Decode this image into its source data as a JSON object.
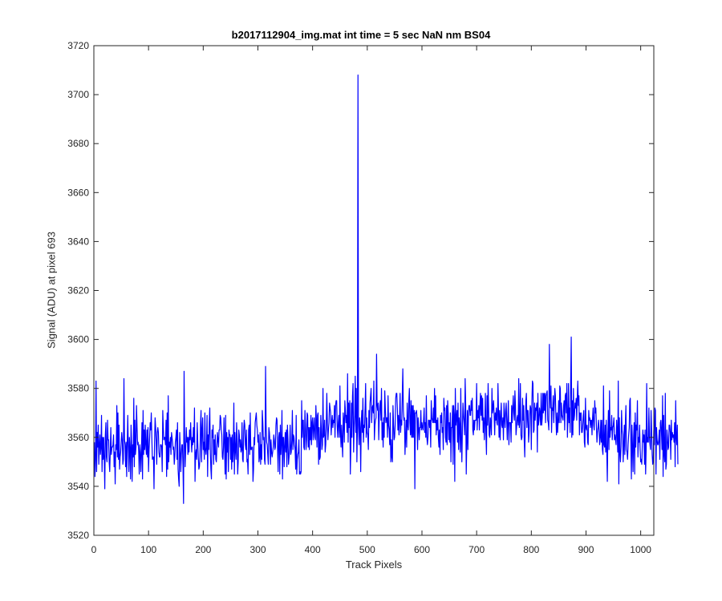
{
  "chart_data": {
    "type": "line",
    "title": "b2017112904_img.mat int time = 5 sec  NaN nm BS04",
    "xlabel": "Track Pixels",
    "ylabel": "Signal (ADU) at pixel 693",
    "xlim": [
      0,
      1024
    ],
    "ylim": [
      3520,
      3720
    ],
    "xticks": [
      0,
      100,
      200,
      300,
      400,
      500,
      600,
      700,
      800,
      900,
      1000
    ],
    "yticks": [
      3520,
      3540,
      3560,
      3580,
      3600,
      3620,
      3640,
      3660,
      3680,
      3700,
      3720
    ],
    "grid": false,
    "legend": "none",
    "line_color": "#0000ff",
    "series": [
      {
        "x_start": 1,
        "x_step": 1,
        "y": [
          3558,
          3544,
          3551,
          3583,
          3546,
          3562,
          3556,
          3565,
          3549,
          3557,
          3561,
          3553,
          3556,
          3569,
          3546,
          3560,
          3551,
          3560,
          3551,
          3539,
          3561,
          3566,
          3552,
          3550,
          3567,
          3559,
          3559,
          3550,
          3546,
          3554,
          3564,
          3553,
          3556,
          3556,
          3557,
          3561,
          3548,
          3554,
          3541,
          3557,
          3555,
          3573,
          3552,
          3570,
          3551,
          3565,
          3547,
          3552,
          3554,
          3558,
          3562,
          3559,
          3549,
          3551,
          3584,
          3559,
          3557,
          3548,
          3558,
          3544,
          3557,
          3569,
          3556,
          3546,
          3560,
          3555,
          3543,
          3565,
          3558,
          3542,
          3557,
          3552,
          3576,
          3548,
          3567,
          3553,
          3556,
          3573,
          3564,
          3557,
          3558,
          3554,
          3545,
          3557,
          3554,
          3546,
          3554,
          3566,
          3543,
          3571,
          3553,
          3563,
          3555,
          3565,
          3557,
          3553,
          3563,
          3552,
          3564,
          3546,
          3555,
          3560,
          3566,
          3563,
          3570,
          3560,
          3551,
          3552,
          3552,
          3539,
          3558,
          3568,
          3564,
          3558,
          3549,
          3562,
          3564,
          3562,
          3554,
          3552,
          3552,
          3557,
          3557,
          3556,
          3546,
          3571,
          3564,
          3559,
          3560,
          3560,
          3557,
          3567,
          3544,
          3570,
          3547,
          3577,
          3550,
          3558,
          3556,
          3560,
          3553,
          3562,
          3560,
          3558,
          3555,
          3556,
          3549,
          3552,
          3558,
          3560,
          3563,
          3551,
          3566,
          3547,
          3543,
          3540,
          3562,
          3556,
          3546,
          3553,
          3557,
          3557,
          3548,
          3533,
          3587,
          3560,
          3548,
          3556,
          3564,
          3558,
          3560,
          3553,
          3560,
          3554,
          3563,
          3559,
          3566,
          3559,
          3554,
          3560,
          3557,
          3564,
          3558,
          3572,
          3542,
          3553,
          3555,
          3551,
          3566,
          3558,
          3552,
          3547,
          3548,
          3552,
          3565,
          3571,
          3550,
          3563,
          3568,
          3555,
          3558,
          3551,
          3570,
          3555,
          3553,
          3556,
          3569,
          3544,
          3561,
          3555,
          3566,
          3572,
          3554,
          3547,
          3543,
          3563,
          3560,
          3565,
          3549,
          3559,
          3553,
          3561,
          3551,
          3550,
          3556,
          3562,
          3559,
          3556,
          3563,
          3563,
          3569,
          3568,
          3563,
          3561,
          3552,
          3551,
          3556,
          3568,
          3557,
          3545,
          3569,
          3543,
          3562,
          3554,
          3560,
          3546,
          3563,
          3561,
          3561,
          3551,
          3560,
          3547,
          3561,
          3550,
          3555,
          3574,
          3545,
          3562,
          3555,
          3551,
          3566,
          3559,
          3545,
          3550,
          3563,
          3561,
          3556,
          3559,
          3554,
          3555,
          3566,
          3551,
          3550,
          3563,
          3567,
          3565,
          3557,
          3555,
          3563,
          3550,
          3551,
          3545,
          3563,
          3565,
          3553,
          3570,
          3555,
          3555,
          3556,
          3556,
          3542,
          3547,
          3560,
          3557,
          3566,
          3568,
          3570,
          3565,
          3563,
          3558,
          3561,
          3550,
          3552,
          3562,
          3549,
          3557,
          3551,
          3571,
          3566,
          3559,
          3560,
          3551,
          3549,
          3589,
          3565,
          3558,
          3557,
          3553,
          3549,
          3564,
          3562,
          3558,
          3549,
          3559,
          3554,
          3552,
          3554,
          3556,
          3561,
          3559,
          3555,
          3556,
          3565,
          3568,
          3567,
          3555,
          3546,
          3560,
          3562,
          3545,
          3565,
          3553,
          3558,
          3571,
          3543,
          3560,
          3560,
          3548,
          3556,
          3562,
          3554,
          3563,
          3548,
          3565,
          3559,
          3549,
          3552,
          3556,
          3565,
          3553,
          3554,
          3559,
          3571,
          3555,
          3561,
          3560,
          3557,
          3555,
          3547,
          3569,
          3545,
          3551,
          3553,
          3554,
          3559,
          3545,
          3546,
          3545,
          3546,
          3575,
          3560,
          3567,
          3567,
          3556,
          3555,
          3571,
          3565,
          3555,
          3559,
          3570,
          3569,
          3556,
          3564,
          3555,
          3564,
          3559,
          3569,
          3557,
          3566,
          3568,
          3559,
          3564,
          3568,
          3560,
          3559,
          3573,
          3567,
          3556,
          3569,
          3570,
          3549,
          3564,
          3551,
          3552,
          3569,
          3563,
          3555,
          3557,
          3580,
          3560,
          3561,
          3567,
          3554,
          3557,
          3565,
          3578,
          3566,
          3559,
          3563,
          3566,
          3574,
          3572,
          3570,
          3561,
          3566,
          3569,
          3564,
          3567,
          3566,
          3573,
          3560,
          3573,
          3575,
          3575,
          3565,
          3560,
          3566,
          3569,
          3560,
          3581,
          3562,
          3556,
          3565,
          3558,
          3552,
          3570,
          3567,
          3558,
          3575,
          3571,
          3566,
          3569,
          3562,
          3586,
          3558,
          3574,
          3564,
          3575,
          3545,
          3556,
          3574,
          3560,
          3577,
          3582,
          3554,
          3564,
          3569,
          3585,
          3562,
          3580,
          3550,
          3564,
          3708,
          3565,
          3557,
          3568,
          3564,
          3546,
          3566,
          3571,
          3562,
          3576,
          3558,
          3565,
          3564,
          3572,
          3582,
          3560,
          3568,
          3562,
          3561,
          3555,
          3571,
          3564,
          3574,
          3577,
          3580,
          3566,
          3572,
          3573,
          3570,
          3583,
          3559,
          3565,
          3567,
          3568,
          3594,
          3573,
          3571,
          3574,
          3559,
          3569,
          3573,
          3575,
          3567,
          3580,
          3559,
          3566,
          3556,
          3568,
          3560,
          3579,
          3572,
          3566,
          3568,
          3568,
          3560,
          3577,
          3565,
          3563,
          3557,
          3570,
          3550,
          3559,
          3552,
          3550,
          3573,
          3566,
          3559,
          3560,
          3565,
          3576,
          3578,
          3578,
          3572,
          3563,
          3569,
          3561,
          3567,
          3578,
          3562,
          3567,
          3565,
          3577,
          3588,
          3571,
          3567,
          3568,
          3553,
          3560,
          3567,
          3556,
          3574,
          3565,
          3563,
          3575,
          3580,
          3566,
          3561,
          3575,
          3560,
          3573,
          3560,
          3573,
          3560,
          3571,
          3539,
          3570,
          3570,
          3571,
          3568,
          3555,
          3568,
          3564,
          3559,
          3564,
          3564,
          3571,
          3563,
          3566,
          3564,
          3563,
          3567,
          3572,
          3562,
          3566,
          3560,
          3577,
          3560,
          3557,
          3560,
          3567,
          3567,
          3564,
          3567,
          3556,
          3575,
          3568,
          3567,
          3566,
          3572,
          3566,
          3580,
          3566,
          3577,
          3561,
          3567,
          3563,
          3568,
          3560,
          3556,
          3563,
          3553,
          3569,
          3566,
          3570,
          3562,
          3564,
          3555,
          3576,
          3571,
          3572,
          3560,
          3558,
          3573,
          3557,
          3575,
          3570,
          3559,
          3566,
          3558,
          3570,
          3550,
          3564,
          3564,
          3573,
          3549,
          3573,
          3569,
          3542,
          3580,
          3565,
          3568,
          3571,
          3558,
          3574,
          3555,
          3568,
          3564,
          3554,
          3580,
          3559,
          3550,
          3564,
          3574,
          3569,
          3566,
          3561,
          3584,
          3573,
          3545,
          3558,
          3571,
          3555,
          3570,
          3573,
          3573,
          3569,
          3569,
          3575,
          3571,
          3576,
          3563,
          3561,
          3567,
          3563,
          3567,
          3567,
          3567,
          3582,
          3563,
          3571,
          3568,
          3573,
          3563,
          3573,
          3578,
          3569,
          3577,
          3567,
          3576,
          3562,
          3568,
          3559,
          3566,
          3578,
          3561,
          3553,
          3577,
          3565,
          3582,
          3571,
          3561,
          3560,
          3568,
          3566,
          3561,
          3580,
          3570,
          3572,
          3575,
          3569,
          3561,
          3570,
          3567,
          3572,
          3566,
          3565,
          3582,
          3571,
          3560,
          3571,
          3559,
          3568,
          3574,
          3565,
          3564,
          3568,
          3559,
          3574,
          3568,
          3564,
          3571,
          3574,
          3567,
          3559,
          3567,
          3575,
          3557,
          3566,
          3566,
          3566,
          3558,
          3573,
          3566,
          3572,
          3577,
          3570,
          3567,
          3579,
          3573,
          3561,
          3564,
          3568,
          3569,
          3565,
          3584,
          3564,
          3567,
          3582,
          3561,
          3559,
          3560,
          3576,
          3567,
          3573,
          3559,
          3552,
          3566,
          3575,
          3578,
          3564,
          3571,
          3571,
          3558,
          3562,
          3569,
          3573,
          3572,
          3555,
          3574,
          3583,
          3582,
          3562,
          3563,
          3574,
          3567,
          3572,
          3571,
          3574,
          3554,
          3578,
          3565,
          3567,
          3572,
          3570,
          3565,
          3578,
          3565,
          3568,
          3578,
          3570,
          3578,
          3571,
          3578,
          3566,
          3577,
          3578,
          3579,
          3567,
          3566,
          3563,
          3598,
          3577,
          3572,
          3581,
          3562,
          3572,
          3571,
          3577,
          3566,
          3573,
          3580,
          3577,
          3568,
          3561,
          3570,
          3562,
          3566,
          3575,
          3566,
          3581,
          3580,
          3566,
          3574,
          3569,
          3568,
          3567,
          3573,
          3575,
          3563,
          3577,
          3578,
          3570,
          3582,
          3560,
          3567,
          3582,
          3566,
          3572,
          3562,
          3583,
          3601,
          3560,
          3575,
          3561,
          3580,
          3567,
          3569,
          3574,
          3572,
          3576,
          3567,
          3576,
          3583,
          3573,
          3577,
          3561,
          3570,
          3567,
          3570,
          3562,
          3562,
          3565,
          3569,
          3571,
          3558,
          3556,
          3576,
          3564,
          3563,
          3565,
          3558,
          3557,
          3571,
          3567,
          3568,
          3564,
          3567,
          3567,
          3561,
          3568,
          3572,
          3565,
          3563,
          3575,
          3570,
          3572,
          3565,
          3558,
          3562,
          3564,
          3567,
          3563,
          3557,
          3560,
          3567,
          3558,
          3567,
          3555,
          3553,
          3581,
          3557,
          3556,
          3565,
          3554,
          3567,
          3554,
          3542,
          3562,
          3571,
          3555,
          3579,
          3560,
          3564,
          3563,
          3569,
          3559,
          3564,
          3565,
          3568,
          3559,
          3561,
          3559,
          3557,
          3567,
          3562,
          3554,
          3583,
          3541,
          3568,
          3554,
          3550,
          3556,
          3571,
          3563,
          3561,
          3550,
          3557,
          3565,
          3553,
          3566,
          3573,
          3555,
          3554,
          3551,
          3557,
          3561,
          3564,
          3575,
          3576,
          3559,
          3543,
          3565,
          3557,
          3546,
          3560,
          3566,
          3545,
          3570,
          3556,
          3565,
          3563,
          3575,
          3552,
          3560,
          3558,
          3565,
          3555,
          3550,
          3551,
          3549,
          3557,
          3563,
          3558,
          3561,
          3549,
          3563,
          3545,
          3555,
          3582,
          3558,
          3560,
          3558,
          3572,
          3560,
          3557,
          3555,
          3571,
          3563,
          3553,
          3549,
          3551,
          3563,
          3557,
          3572,
          3571,
          3545,
          3564,
          3559,
          3557,
          3557,
          3559,
          3563,
          3551,
          3566,
          3567,
          3562,
          3555,
          3577,
          3544,
          3569,
          3553,
          3550,
          3578,
          3547,
          3549,
          3563,
          3560,
          3555,
          3556,
          3565,
          3565,
          3562,
          3551,
          3567,
          3559,
          3562,
          3560,
          3561,
          3558,
          3566,
          3548,
          3575,
          3560,
          3557,
          3565,
          3549
        ]
      }
    ]
  }
}
